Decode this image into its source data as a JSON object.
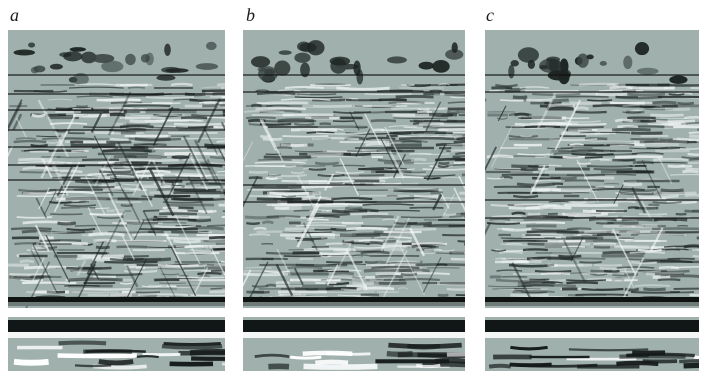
{
  "figure": {
    "panels": [
      {
        "id": "a",
        "label": "a",
        "description_kind": "seismic-section-raw",
        "background_color": "#9fb0ad",
        "diagonal_noise": "strong"
      },
      {
        "id": "b",
        "label": "b",
        "description_kind": "seismic-section-filtered",
        "background_color": "#9fb0ad",
        "diagonal_noise": "medium"
      },
      {
        "id": "c",
        "label": "c",
        "description_kind": "seismic-section-filtered",
        "background_color": "#9fb0ad",
        "diagonal_noise": "weak"
      }
    ]
  }
}
